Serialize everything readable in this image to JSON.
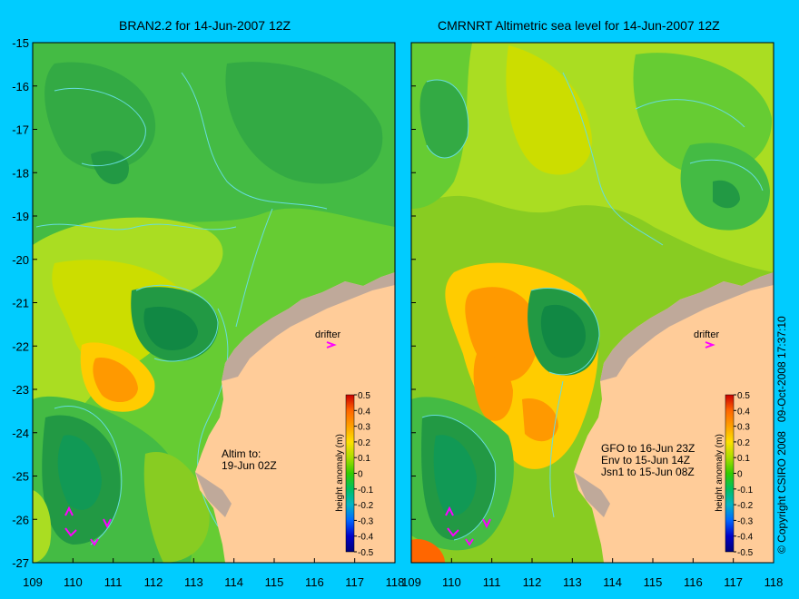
{
  "left_panel": {
    "title": "BRAN2.2 for 14-Jun-2007 12Z",
    "drifter_label": "drifter",
    "altim_note": [
      "Altim to:",
      "19-Jun 02Z"
    ]
  },
  "right_panel": {
    "title": "CMRNRT Altimetric sea level  for 14-Jun-2007 12Z",
    "drifter_label": "drifter",
    "altim_note": [
      "GFO to 16-Jun 23Z",
      "Env to 15-Jun 14Z",
      "Jsn1 to 15-Jun 08Z"
    ]
  },
  "axes": {
    "x_ticks": [
      "109",
      "110",
      "111",
      "112",
      "113",
      "114",
      "115",
      "116",
      "117",
      "118"
    ],
    "y_ticks": [
      "-15",
      "-16",
      "-17",
      "-18",
      "-19",
      "-20",
      "-21",
      "-22",
      "-23",
      "-24",
      "-25",
      "-26",
      "-27"
    ],
    "lon_range": [
      109,
      118
    ],
    "lat_range": [
      -27,
      -15
    ]
  },
  "colorbar": {
    "label": "height anomaly (m)",
    "ticks": [
      "0.5",
      "0.4",
      "0.3",
      "0.2",
      "0.1",
      "0",
      "-0.1",
      "-0.2",
      "-0.3",
      "-0.4",
      "-0.5"
    ]
  },
  "copyright": "© Copyright CSIRO 2008",
  "timestamp": "09-Oct-2008 17:37:10",
  "colors": {
    "background": "#00ccff",
    "land": "#ffcc99",
    "coast_shelf": "#bfa99a",
    "drifter": "#ff00ff",
    "contour": "#66dddd"
  }
}
